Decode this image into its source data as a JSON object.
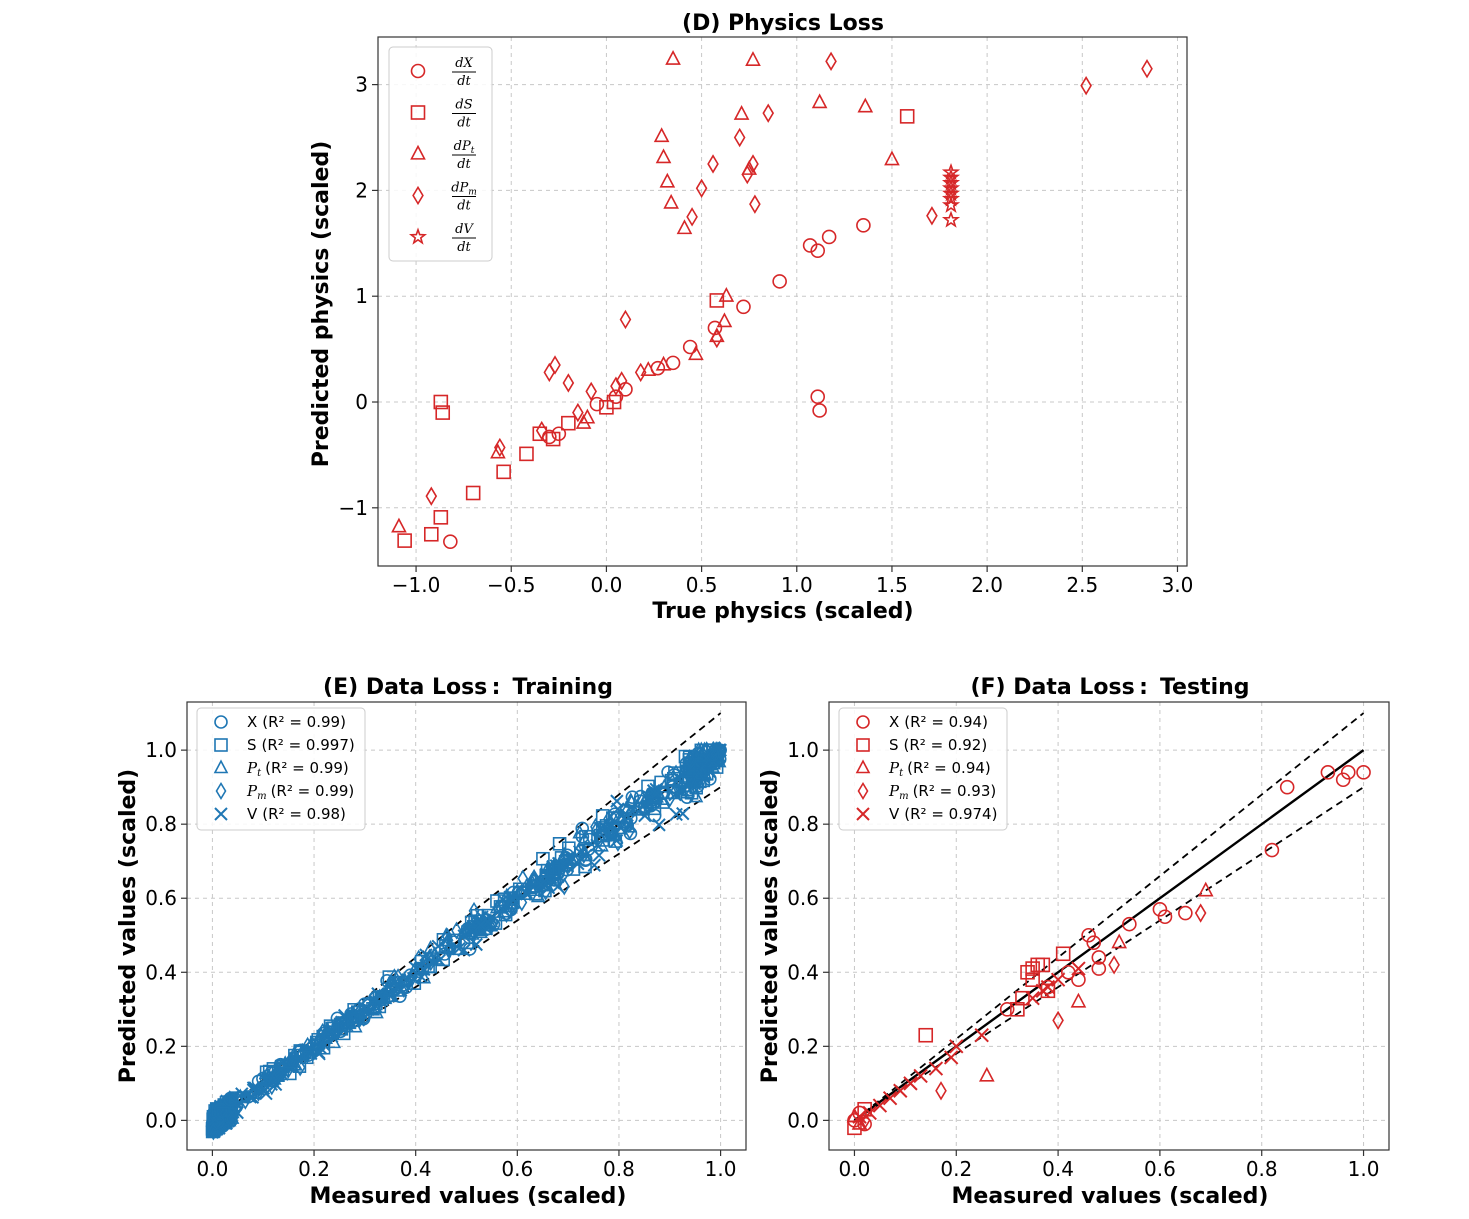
{
  "chart_data": [
    {
      "id": "D",
      "type": "scatter",
      "title": "(D) Physics Loss",
      "xlabel": "True physics (scaled)",
      "ylabel": "Predicted physics (scaled)",
      "xlim": [
        -1.2,
        3.05
      ],
      "ylim": [
        -1.55,
        3.45
      ],
      "xticks": [
        -1.0,
        -0.5,
        0.0,
        0.5,
        1.0,
        1.5,
        2.0,
        2.5,
        3.0
      ],
      "xtick_labels": [
        "−1.0",
        "−0.5",
        "0.0",
        "0.5",
        "1.0",
        "1.5",
        "2.0",
        "2.5",
        "3.0"
      ],
      "yticks": [
        -1,
        0,
        1,
        2,
        3
      ],
      "ytick_labels": [
        "−1",
        "0",
        "1",
        "2",
        "3"
      ],
      "grid": true,
      "legend_position": "top-left",
      "color": "#d62728",
      "series": [
        {
          "name": "dX/dt",
          "num": "dX",
          "den": "dt",
          "marker": "circle",
          "points": [
            [
              -0.82,
              -1.32
            ],
            [
              0.35,
              0.37
            ],
            [
              0.44,
              0.52
            ],
            [
              0.57,
              0.7
            ],
            [
              0.72,
              0.9
            ],
            [
              0.91,
              1.14
            ],
            [
              1.07,
              1.48
            ],
            [
              1.11,
              1.43
            ],
            [
              1.17,
              1.56
            ],
            [
              1.35,
              1.67
            ],
            [
              1.11,
              0.05
            ],
            [
              1.12,
              -0.08
            ],
            [
              -0.3,
              -0.33
            ],
            [
              -0.25,
              -0.3
            ],
            [
              0.27,
              0.32
            ],
            [
              0.1,
              0.12
            ],
            [
              0.05,
              0.05
            ],
            [
              -0.05,
              -0.02
            ]
          ]
        },
        {
          "name": "dS/dt",
          "num": "dS",
          "den": "dt",
          "marker": "square",
          "points": [
            [
              -1.06,
              -1.31
            ],
            [
              -0.92,
              -1.25
            ],
            [
              -0.87,
              -1.09
            ],
            [
              -0.7,
              -0.86
            ],
            [
              -0.54,
              -0.66
            ],
            [
              -0.42,
              -0.49
            ],
            [
              -0.87,
              0.0
            ],
            [
              -0.86,
              -0.1
            ],
            [
              0.58,
              0.96
            ],
            [
              1.58,
              2.7
            ],
            [
              -0.28,
              -0.35
            ],
            [
              -0.35,
              -0.3
            ],
            [
              -0.2,
              -0.2
            ],
            [
              0.0,
              -0.05
            ],
            [
              0.04,
              0.0
            ]
          ]
        },
        {
          "name": "dP_t/dt",
          "num": "dP",
          "sub": "t",
          "den": "dt",
          "marker": "triangle",
          "points": [
            [
              -1.09,
              -1.18
            ],
            [
              -0.57,
              -0.48
            ],
            [
              0.35,
              3.24
            ],
            [
              0.77,
              3.23
            ],
            [
              0.29,
              2.51
            ],
            [
              0.3,
              2.31
            ],
            [
              0.32,
              2.08
            ],
            [
              0.34,
              1.88
            ],
            [
              0.41,
              1.64
            ],
            [
              0.71,
              2.72
            ],
            [
              1.12,
              2.83
            ],
            [
              1.36,
              2.79
            ],
            [
              1.5,
              2.29
            ],
            [
              0.75,
              2.2
            ],
            [
              0.63,
              1.0
            ],
            [
              0.62,
              0.76
            ],
            [
              0.58,
              0.62
            ],
            [
              0.47,
              0.45
            ],
            [
              0.3,
              0.35
            ],
            [
              0.22,
              0.3
            ],
            [
              -0.1,
              -0.15
            ],
            [
              -0.12,
              -0.2
            ]
          ]
        },
        {
          "name": "dP_m/dt",
          "num": "dP",
          "sub": "m",
          "den": "dt",
          "marker": "diamond",
          "points": [
            [
              -0.92,
              -0.89
            ],
            [
              -0.56,
              -0.43
            ],
            [
              -0.34,
              -0.27
            ],
            [
              -0.3,
              0.28
            ],
            [
              -0.27,
              0.35
            ],
            [
              -0.2,
              0.18
            ],
            [
              0.1,
              0.78
            ],
            [
              0.18,
              0.28
            ],
            [
              0.45,
              1.75
            ],
            [
              0.5,
              2.02
            ],
            [
              0.56,
              2.25
            ],
            [
              0.7,
              2.5
            ],
            [
              0.74,
              2.15
            ],
            [
              0.77,
              2.25
            ],
            [
              0.78,
              1.87
            ],
            [
              0.85,
              2.73
            ],
            [
              1.18,
              3.22
            ],
            [
              1.71,
              1.76
            ],
            [
              2.52,
              2.99
            ],
            [
              2.84,
              3.15
            ],
            [
              0.58,
              0.6
            ],
            [
              0.08,
              0.2
            ],
            [
              -0.08,
              0.1
            ],
            [
              0.05,
              0.15
            ],
            [
              -0.15,
              -0.1
            ]
          ]
        },
        {
          "name": "dV/dt",
          "num": "dV",
          "den": "dt",
          "marker": "star",
          "points": [
            [
              1.81,
              1.72
            ],
            [
              1.81,
              1.86
            ],
            [
              1.81,
              1.92
            ],
            [
              1.81,
              1.97
            ],
            [
              1.81,
              2.02
            ],
            [
              1.81,
              2.07
            ],
            [
              1.81,
              2.12
            ],
            [
              1.81,
              2.17
            ]
          ]
        }
      ]
    },
    {
      "id": "E",
      "type": "scatter",
      "title": "(E) Data Loss :  Training",
      "xlabel": "Measured values (scaled)",
      "ylabel": "Predicted values (scaled)",
      "xlim": [
        -0.05,
        1.05
      ],
      "ylim": [
        -0.08,
        1.13
      ],
      "xticks": [
        0.0,
        0.2,
        0.4,
        0.6,
        0.8,
        1.0
      ],
      "xtick_labels": [
        "0.0",
        "0.2",
        "0.4",
        "0.6",
        "0.8",
        "1.0"
      ],
      "yticks": [
        0.0,
        0.2,
        0.4,
        0.6,
        0.8,
        1.0
      ],
      "ytick_labels": [
        "0.0",
        "0.2",
        "0.4",
        "0.6",
        "0.8",
        "1.0"
      ],
      "grid": true,
      "legend_position": "top-left",
      "color": "#1f77b4",
      "reference_lines": {
        "identity": [
          [
            0,
            0
          ],
          [
            1,
            1
          ]
        ],
        "upper": [
          [
            0,
            0
          ],
          [
            1,
            1.1
          ]
        ],
        "lower": [
          [
            0,
            0
          ],
          [
            1,
            0.9
          ]
        ]
      },
      "series": [
        {
          "name": "X",
          "label_main": "X",
          "r2": "(R² = 0.99)",
          "marker": "circle"
        },
        {
          "name": "S",
          "label_main": "S",
          "r2": "(R² = 0.997)",
          "marker": "square"
        },
        {
          "name": "P_t",
          "label_main": "P",
          "sub": "t",
          "r2": "(R² = 0.99)",
          "marker": "triangle"
        },
        {
          "name": "P_m",
          "label_main": "P",
          "sub": "m",
          "r2": "(R² = 0.99)",
          "marker": "diamond"
        },
        {
          "name": "V",
          "label_main": "V",
          "r2": "(R² = 0.98)",
          "marker": "x"
        }
      ]
    },
    {
      "id": "F",
      "type": "scatter",
      "title": "(F) Data Loss :  Testing",
      "xlabel": "Measured values (scaled)",
      "ylabel": "Predicted values (scaled)",
      "xlim": [
        -0.05,
        1.05
      ],
      "ylim": [
        -0.08,
        1.13
      ],
      "xticks": [
        0.0,
        0.2,
        0.4,
        0.6,
        0.8,
        1.0
      ],
      "xtick_labels": [
        "0.0",
        "0.2",
        "0.4",
        "0.6",
        "0.8",
        "1.0"
      ],
      "yticks": [
        0.0,
        0.2,
        0.4,
        0.6,
        0.8,
        1.0
      ],
      "ytick_labels": [
        "0.0",
        "0.2",
        "0.4",
        "0.6",
        "0.8",
        "1.0"
      ],
      "grid": true,
      "legend_position": "top-left",
      "color": "#d62728",
      "reference_lines": {
        "identity": [
          [
            0,
            0
          ],
          [
            1,
            1
          ]
        ],
        "upper": [
          [
            0,
            0
          ],
          [
            1,
            1.1
          ]
        ],
        "lower": [
          [
            0,
            0
          ],
          [
            1,
            0.9
          ]
        ]
      },
      "series": [
        {
          "name": "X",
          "label_main": "X",
          "r2": "(R² = 0.94)",
          "marker": "circle",
          "points": [
            [
              0.0,
              0.0
            ],
            [
              0.01,
              0.02
            ],
            [
              0.02,
              -0.01
            ],
            [
              0.3,
              0.3
            ],
            [
              0.38,
              0.36
            ],
            [
              0.42,
              0.4
            ],
            [
              0.44,
              0.38
            ],
            [
              0.46,
              0.5
            ],
            [
              0.47,
              0.48
            ],
            [
              0.48,
              0.44
            ],
            [
              0.48,
              0.41
            ],
            [
              0.54,
              0.53
            ],
            [
              0.6,
              0.57
            ],
            [
              0.61,
              0.55
            ],
            [
              0.65,
              0.56
            ],
            [
              0.82,
              0.73
            ],
            [
              0.85,
              0.9
            ],
            [
              0.93,
              0.94
            ],
            [
              0.96,
              0.92
            ],
            [
              0.97,
              0.94
            ],
            [
              1.0,
              0.94
            ]
          ]
        },
        {
          "name": "S",
          "label_main": "S",
          "r2": "(R² = 0.92)",
          "marker": "square",
          "points": [
            [
              0.0,
              -0.02
            ],
            [
              0.02,
              0.03
            ],
            [
              0.14,
              0.23
            ],
            [
              0.34,
              0.4
            ],
            [
              0.35,
              0.41
            ],
            [
              0.36,
              0.42
            ],
            [
              0.37,
              0.42
            ],
            [
              0.35,
              0.38
            ],
            [
              0.33,
              0.33
            ],
            [
              0.32,
              0.3
            ],
            [
              0.38,
              0.35
            ],
            [
              0.41,
              0.45
            ]
          ]
        },
        {
          "name": "P_t",
          "label_main": "P",
          "sub": "t",
          "r2": "(R² = 0.94)",
          "marker": "triangle",
          "points": [
            [
              0.0,
              0.01
            ],
            [
              0.01,
              -0.01
            ],
            [
              0.26,
              0.12
            ],
            [
              0.44,
              0.32
            ],
            [
              0.52,
              0.48
            ],
            [
              0.69,
              0.62
            ]
          ]
        },
        {
          "name": "P_m",
          "label_main": "P",
          "sub": "m",
          "r2": "(R² = 0.93)",
          "marker": "diamond",
          "points": [
            [
              0.02,
              0.0
            ],
            [
              0.17,
              0.08
            ],
            [
              0.4,
              0.27
            ],
            [
              0.51,
              0.42
            ],
            [
              0.68,
              0.56
            ]
          ]
        },
        {
          "name": "V",
          "label_main": "V",
          "r2": "(R² = 0.974)",
          "marker": "x",
          "points": [
            [
              0.01,
              0.01
            ],
            [
              0.03,
              0.02
            ],
            [
              0.05,
              0.04
            ],
            [
              0.07,
              0.06
            ],
            [
              0.09,
              0.08
            ],
            [
              0.11,
              0.1
            ],
            [
              0.13,
              0.12
            ],
            [
              0.16,
              0.14
            ],
            [
              0.19,
              0.17
            ],
            [
              0.2,
              0.2
            ],
            [
              0.25,
              0.23
            ],
            [
              0.35,
              0.33
            ],
            [
              0.37,
              0.35
            ],
            [
              0.38,
              0.36
            ],
            [
              0.4,
              0.38
            ],
            [
              0.44,
              0.41
            ]
          ]
        }
      ]
    }
  ]
}
